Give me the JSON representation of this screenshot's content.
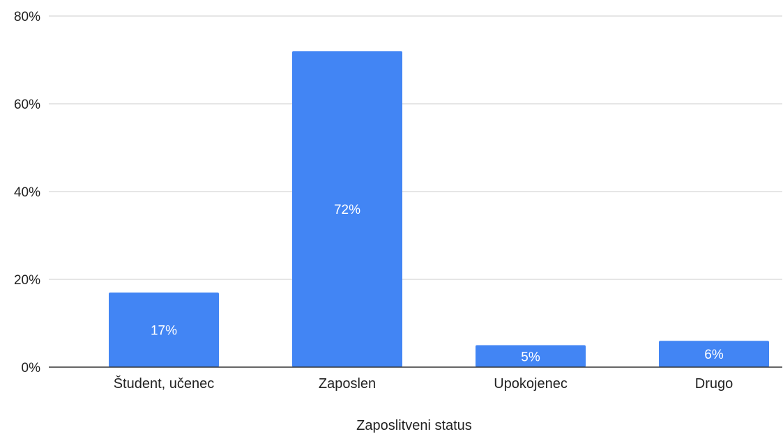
{
  "chart_data": {
    "type": "bar",
    "categories": [
      "Študent, učenec",
      "Zaposlen",
      "Upokojenec",
      "Drugo"
    ],
    "values": [
      17,
      72,
      5,
      6
    ],
    "data_labels": [
      "17%",
      "72%",
      "5%",
      "6%"
    ],
    "xlabel": "Zaposlitveni status",
    "ylabel": "",
    "ylim": [
      0,
      80
    ],
    "yticks": [
      0,
      20,
      40,
      60,
      80
    ],
    "ytick_labels": [
      "0%",
      "20%",
      "40%",
      "60%",
      "80%"
    ],
    "grid": true,
    "legend": "none",
    "colors": {
      "bar": "#4285f4",
      "grid": "#cccccc",
      "axis": "#333333",
      "bar_label": "#ffffff"
    }
  }
}
